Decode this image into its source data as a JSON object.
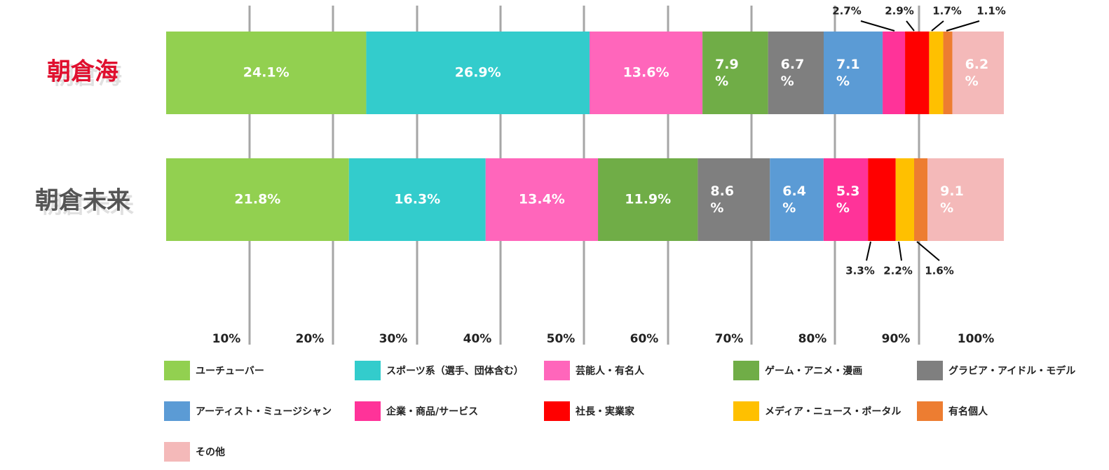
{
  "chart_data": {
    "type": "bar",
    "orientation": "horizontal",
    "stacked": true,
    "categories": [
      "朝倉海",
      "朝倉未来"
    ],
    "category_colors": [
      "#e0102f",
      "#555555"
    ],
    "x_ticks": [
      "10%",
      "20%",
      "30%",
      "40%",
      "50%",
      "60%",
      "70%",
      "80%",
      "90%",
      "100%"
    ],
    "series": [
      {
        "name": "ユーチューバー",
        "color": "#92d050",
        "values": [
          24.1,
          21.8
        ],
        "labels": [
          "24.1%",
          "21.8%"
        ]
      },
      {
        "name": "スポーツ系（選手、団体含む）",
        "color": "#33cccc",
        "values": [
          26.9,
          16.3
        ],
        "labels": [
          "26.9%",
          "16.3%"
        ]
      },
      {
        "name": "芸能人・有名人",
        "color": "#ff66bb",
        "values": [
          13.6,
          13.4
        ],
        "labels": [
          "13.6%",
          "13.4%"
        ]
      },
      {
        "name": "ゲーム・アニメ・漫画",
        "color": "#70ad47",
        "values": [
          7.9,
          11.9
        ],
        "labels": [
          "7.9\n%",
          "11.9%"
        ]
      },
      {
        "name": "グラビア・アイドル・モデル",
        "color": "#7f7f7f",
        "values": [
          6.7,
          8.6
        ],
        "labels": [
          "6.7\n%",
          "8.6\n%"
        ]
      },
      {
        "name": "アーティスト・ミュージシャン",
        "color": "#5b9bd5",
        "values": [
          7.1,
          6.4
        ],
        "labels": [
          "7.1\n%",
          "6.4\n%"
        ]
      },
      {
        "name": "企業・商品/サービス",
        "color": "#ff3399",
        "values": [
          2.7,
          5.3
        ],
        "labels": [
          "2.7%",
          "5.3\n%"
        ]
      },
      {
        "name": "社長・実業家",
        "color": "#ff0000",
        "values": [
          2.9,
          3.3
        ],
        "labels": [
          "2.9%",
          "3.3%"
        ]
      },
      {
        "name": "メディア・ニュース・ポータル",
        "color": "#ffc000",
        "values": [
          1.7,
          2.2
        ],
        "labels": [
          "1.7%",
          "2.2%"
        ]
      },
      {
        "name": "有名個人",
        "color": "#ed7d31",
        "values": [
          1.1,
          1.6
        ],
        "labels": [
          "1.1%",
          "1.6%"
        ]
      },
      {
        "name": "その他",
        "color": "#f4b9b9",
        "values": [
          6.2,
          9.1
        ],
        "labels": [
          "6.2\n%",
          "9.1\n%"
        ]
      }
    ],
    "outside_labels": [
      {
        "row": 0,
        "series": [
          6,
          7,
          8,
          9
        ],
        "position": "above"
      },
      {
        "row": 1,
        "series": [
          7,
          8,
          9
        ],
        "position": "below"
      }
    ],
    "legend_position": "bottom"
  }
}
